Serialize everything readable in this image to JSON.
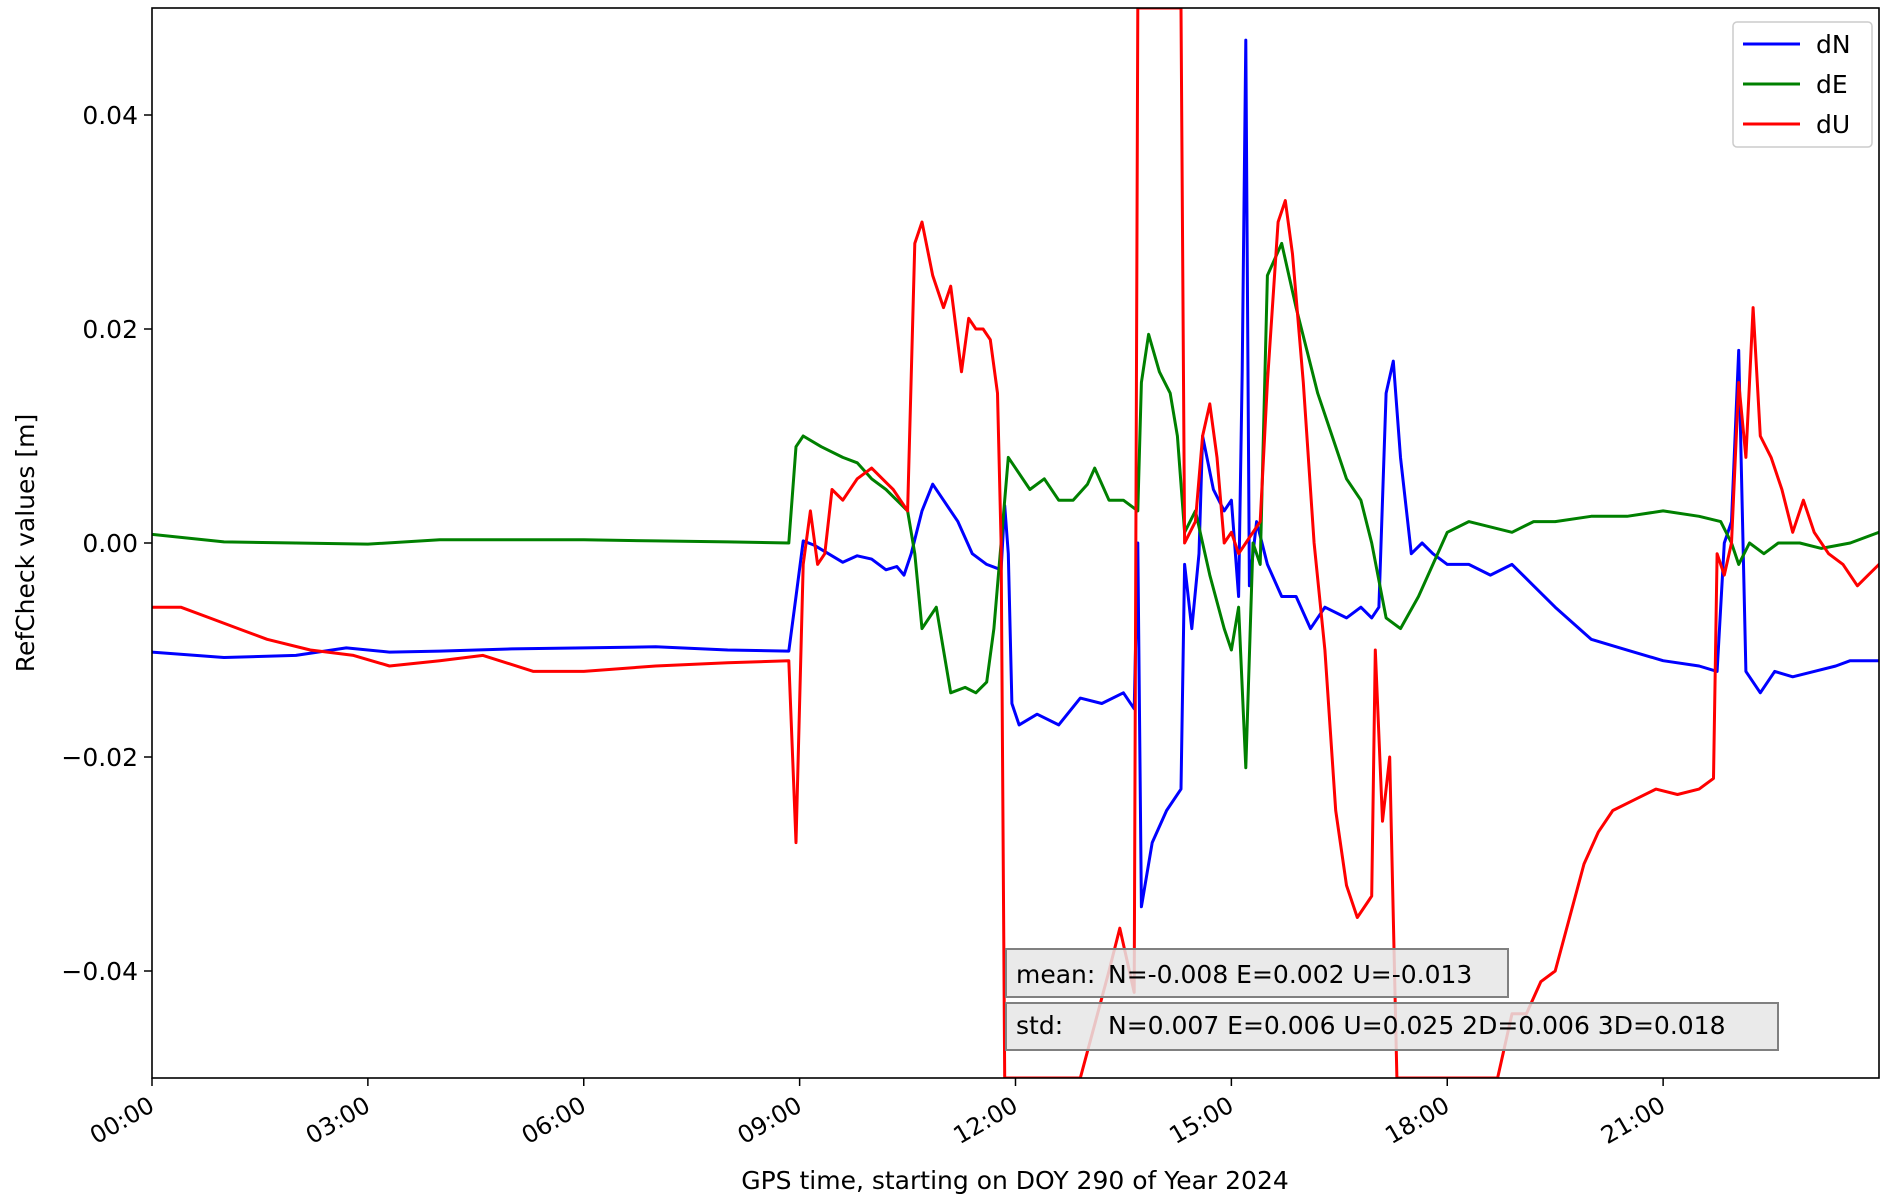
{
  "chart_data": {
    "type": "line",
    "title": "",
    "xlabel": "GPS time, starting on DOY 290 of Year 2024",
    "ylabel": "RefCheck values [m]",
    "x_unit": "hours",
    "xlim": [
      0,
      24
    ],
    "ylim": [
      -0.05,
      0.05
    ],
    "xticks": [
      0,
      3,
      6,
      9,
      12,
      15,
      18,
      21
    ],
    "xtick_labels": [
      "00:00",
      "03:00",
      "06:00",
      "09:00",
      "12:00",
      "15:00",
      "18:00",
      "21:00"
    ],
    "yticks": [
      -0.04,
      -0.02,
      0.0,
      0.02,
      0.04
    ],
    "ytick_labels": [
      "−0.04",
      "−0.02",
      "0.00",
      "0.02",
      "0.04"
    ],
    "grid": false,
    "legend_position": "top-right",
    "series": [
      {
        "name": "dN",
        "color": "#0000ff",
        "points": [
          [
            0.0,
            -0.0102
          ],
          [
            1.0,
            -0.0107
          ],
          [
            2.0,
            -0.0105
          ],
          [
            2.7,
            -0.0098
          ],
          [
            3.3,
            -0.0102
          ],
          [
            4.0,
            -0.0101
          ],
          [
            5.0,
            -0.0099
          ],
          [
            6.0,
            -0.0098
          ],
          [
            7.0,
            -0.0097
          ],
          [
            8.0,
            -0.01
          ],
          [
            8.85,
            -0.0101
          ],
          [
            8.95,
            -0.005
          ],
          [
            9.05,
            0.0002
          ],
          [
            9.2,
            -0.0002
          ],
          [
            9.4,
            -0.001
          ],
          [
            9.6,
            -0.0018
          ],
          [
            9.8,
            -0.0012
          ],
          [
            10.0,
            -0.0015
          ],
          [
            10.2,
            -0.0025
          ],
          [
            10.35,
            -0.0022
          ],
          [
            10.45,
            -0.003
          ],
          [
            10.55,
            -0.001
          ],
          [
            10.7,
            0.003
          ],
          [
            10.85,
            0.0055
          ],
          [
            11.0,
            0.004
          ],
          [
            11.2,
            0.002
          ],
          [
            11.4,
            -0.001
          ],
          [
            11.6,
            -0.002
          ],
          [
            11.8,
            -0.0025
          ],
          [
            11.85,
            0.0035
          ],
          [
            11.9,
            -0.001
          ],
          [
            11.95,
            -0.015
          ],
          [
            12.05,
            -0.017
          ],
          [
            12.3,
            -0.016
          ],
          [
            12.6,
            -0.017
          ],
          [
            12.9,
            -0.0145
          ],
          [
            13.2,
            -0.015
          ],
          [
            13.5,
            -0.014
          ],
          [
            13.65,
            -0.0155
          ],
          [
            13.7,
            0.0
          ],
          [
            13.75,
            -0.034
          ],
          [
            13.9,
            -0.028
          ],
          [
            14.1,
            -0.025
          ],
          [
            14.3,
            -0.023
          ],
          [
            14.35,
            -0.002
          ],
          [
            14.45,
            -0.008
          ],
          [
            14.55,
            -0.001
          ],
          [
            14.6,
            0.01
          ],
          [
            14.75,
            0.005
          ],
          [
            14.9,
            0.003
          ],
          [
            15.0,
            0.004
          ],
          [
            15.1,
            -0.005
          ],
          [
            15.15,
            0.016
          ],
          [
            15.2,
            0.047
          ],
          [
            15.25,
            -0.004
          ],
          [
            15.35,
            0.002
          ],
          [
            15.5,
            -0.002
          ],
          [
            15.7,
            -0.005
          ],
          [
            15.9,
            -0.005
          ],
          [
            16.1,
            -0.008
          ],
          [
            16.3,
            -0.006
          ],
          [
            16.6,
            -0.007
          ],
          [
            16.8,
            -0.006
          ],
          [
            16.95,
            -0.007
          ],
          [
            17.05,
            -0.006
          ],
          [
            17.15,
            0.014
          ],
          [
            17.25,
            0.017
          ],
          [
            17.35,
            0.008
          ],
          [
            17.5,
            -0.001
          ],
          [
            17.65,
            0.0
          ],
          [
            17.8,
            -0.001
          ],
          [
            18.0,
            -0.002
          ],
          [
            18.3,
            -0.002
          ],
          [
            18.6,
            -0.003
          ],
          [
            18.9,
            -0.002
          ],
          [
            19.2,
            -0.004
          ],
          [
            19.5,
            -0.006
          ],
          [
            20.0,
            -0.009
          ],
          [
            20.5,
            -0.01
          ],
          [
            21.0,
            -0.011
          ],
          [
            21.5,
            -0.0115
          ],
          [
            21.75,
            -0.012
          ],
          [
            21.85,
            0.0
          ],
          [
            21.95,
            0.002
          ],
          [
            22.05,
            0.018
          ],
          [
            22.15,
            -0.012
          ],
          [
            22.35,
            -0.014
          ],
          [
            22.55,
            -0.012
          ],
          [
            22.8,
            -0.0125
          ],
          [
            23.1,
            -0.012
          ],
          [
            23.4,
            -0.0115
          ],
          [
            23.6,
            -0.011
          ],
          [
            24.0,
            -0.011
          ]
        ]
      },
      {
        "name": "dE",
        "color": "#008000",
        "points": [
          [
            0.0,
            0.0008
          ],
          [
            1.0,
            0.0001
          ],
          [
            2.0,
            0.0
          ],
          [
            3.0,
            -0.0001
          ],
          [
            4.0,
            0.0003
          ],
          [
            5.0,
            0.0003
          ],
          [
            6.0,
            0.0003
          ],
          [
            7.0,
            0.0002
          ],
          [
            8.0,
            0.0001
          ],
          [
            8.85,
            0.0
          ],
          [
            8.95,
            0.009
          ],
          [
            9.05,
            0.01
          ],
          [
            9.3,
            0.009
          ],
          [
            9.6,
            0.008
          ],
          [
            9.8,
            0.0075
          ],
          [
            10.0,
            0.006
          ],
          [
            10.2,
            0.005
          ],
          [
            10.35,
            0.004
          ],
          [
            10.5,
            0.003
          ],
          [
            10.6,
            -0.001
          ],
          [
            10.7,
            -0.008
          ],
          [
            10.9,
            -0.006
          ],
          [
            11.0,
            -0.01
          ],
          [
            11.1,
            -0.014
          ],
          [
            11.3,
            -0.0135
          ],
          [
            11.45,
            -0.014
          ],
          [
            11.6,
            -0.013
          ],
          [
            11.7,
            -0.008
          ],
          [
            11.8,
            0.0
          ],
          [
            11.9,
            0.008
          ],
          [
            12.0,
            0.007
          ],
          [
            12.2,
            0.005
          ],
          [
            12.4,
            0.006
          ],
          [
            12.6,
            0.004
          ],
          [
            12.8,
            0.004
          ],
          [
            13.0,
            0.0055
          ],
          [
            13.1,
            0.007
          ],
          [
            13.3,
            0.004
          ],
          [
            13.5,
            0.004
          ],
          [
            13.7,
            0.003
          ],
          [
            13.75,
            0.015
          ],
          [
            13.85,
            0.0195
          ],
          [
            14.0,
            0.016
          ],
          [
            14.15,
            0.014
          ],
          [
            14.25,
            0.01
          ],
          [
            14.35,
            0.001
          ],
          [
            14.5,
            0.003
          ],
          [
            14.7,
            -0.003
          ],
          [
            14.9,
            -0.008
          ],
          [
            15.0,
            -0.01
          ],
          [
            15.1,
            -0.006
          ],
          [
            15.2,
            -0.021
          ],
          [
            15.3,
            0.0
          ],
          [
            15.4,
            -0.002
          ],
          [
            15.5,
            0.025
          ],
          [
            15.7,
            0.028
          ],
          [
            15.9,
            0.022
          ],
          [
            16.05,
            0.018
          ],
          [
            16.2,
            0.014
          ],
          [
            16.4,
            0.01
          ],
          [
            16.6,
            0.006
          ],
          [
            16.8,
            0.004
          ],
          [
            16.95,
            0.0
          ],
          [
            17.15,
            -0.007
          ],
          [
            17.35,
            -0.008
          ],
          [
            17.6,
            -0.005
          ],
          [
            17.8,
            -0.002
          ],
          [
            18.0,
            0.001
          ],
          [
            18.3,
            0.002
          ],
          [
            18.6,
            0.0015
          ],
          [
            18.9,
            0.001
          ],
          [
            19.2,
            0.002
          ],
          [
            19.5,
            0.002
          ],
          [
            20.0,
            0.0025
          ],
          [
            20.5,
            0.0025
          ],
          [
            21.0,
            0.003
          ],
          [
            21.5,
            0.0025
          ],
          [
            21.8,
            0.002
          ],
          [
            21.95,
            0.0
          ],
          [
            22.05,
            -0.002
          ],
          [
            22.2,
            0.0
          ],
          [
            22.4,
            -0.001
          ],
          [
            22.6,
            0.0
          ],
          [
            22.9,
            0.0
          ],
          [
            23.2,
            -0.0005
          ],
          [
            23.6,
            0.0
          ],
          [
            24.0,
            0.001
          ]
        ]
      },
      {
        "name": "dU",
        "color": "#ff0000",
        "points": [
          [
            0.0,
            -0.006
          ],
          [
            0.4,
            -0.006
          ],
          [
            0.8,
            -0.007
          ],
          [
            1.2,
            -0.008
          ],
          [
            1.6,
            -0.009
          ],
          [
            2.2,
            -0.01
          ],
          [
            2.8,
            -0.0105
          ],
          [
            3.3,
            -0.0115
          ],
          [
            4.0,
            -0.011
          ],
          [
            4.6,
            -0.0105
          ],
          [
            5.3,
            -0.012
          ],
          [
            6.0,
            -0.012
          ],
          [
            7.0,
            -0.0115
          ],
          [
            8.0,
            -0.0112
          ],
          [
            8.85,
            -0.011
          ],
          [
            8.95,
            -0.028
          ],
          [
            9.05,
            -0.002
          ],
          [
            9.15,
            0.003
          ],
          [
            9.25,
            -0.002
          ],
          [
            9.35,
            -0.001
          ],
          [
            9.45,
            0.005
          ],
          [
            9.6,
            0.004
          ],
          [
            9.8,
            0.006
          ],
          [
            10.0,
            0.007
          ],
          [
            10.15,
            0.006
          ],
          [
            10.3,
            0.005
          ],
          [
            10.5,
            0.003
          ],
          [
            10.6,
            0.028
          ],
          [
            10.7,
            0.03
          ],
          [
            10.85,
            0.025
          ],
          [
            11.0,
            0.022
          ],
          [
            11.1,
            0.024
          ],
          [
            11.25,
            0.016
          ],
          [
            11.35,
            0.021
          ],
          [
            11.45,
            0.02
          ],
          [
            11.55,
            0.02
          ],
          [
            11.65,
            0.019
          ],
          [
            11.75,
            0.014
          ],
          [
            11.8,
            0.0
          ],
          [
            11.85,
            -0.05
          ],
          [
            12.9,
            -0.05
          ],
          [
            13.1,
            -0.045
          ],
          [
            13.3,
            -0.04
          ],
          [
            13.45,
            -0.036
          ],
          [
            13.65,
            -0.042
          ],
          [
            13.7,
            0.05
          ],
          [
            14.3,
            0.05
          ],
          [
            14.35,
            0.0
          ],
          [
            14.5,
            0.002
          ],
          [
            14.6,
            0.01
          ],
          [
            14.7,
            0.013
          ],
          [
            14.8,
            0.008
          ],
          [
            14.9,
            0.0
          ],
          [
            15.0,
            0.001
          ],
          [
            15.1,
            -0.001
          ],
          [
            15.2,
            0.0
          ],
          [
            15.4,
            0.002
          ],
          [
            15.5,
            0.015
          ],
          [
            15.65,
            0.03
          ],
          [
            15.75,
            0.032
          ],
          [
            15.85,
            0.027
          ],
          [
            16.0,
            0.015
          ],
          [
            16.15,
            0.0
          ],
          [
            16.3,
            -0.01
          ],
          [
            16.45,
            -0.025
          ],
          [
            16.6,
            -0.032
          ],
          [
            16.75,
            -0.035
          ],
          [
            16.9,
            -0.0335
          ],
          [
            16.95,
            -0.033
          ],
          [
            17.0,
            -0.01
          ],
          [
            17.1,
            -0.026
          ],
          [
            17.2,
            -0.02
          ],
          [
            17.3,
            -0.05
          ],
          [
            18.7,
            -0.05
          ],
          [
            18.9,
            -0.044
          ],
          [
            19.1,
            -0.044
          ],
          [
            19.3,
            -0.041
          ],
          [
            19.5,
            -0.04
          ],
          [
            19.7,
            -0.035
          ],
          [
            19.9,
            -0.03
          ],
          [
            20.1,
            -0.027
          ],
          [
            20.3,
            -0.025
          ],
          [
            20.6,
            -0.024
          ],
          [
            20.9,
            -0.023
          ],
          [
            21.2,
            -0.0235
          ],
          [
            21.5,
            -0.023
          ],
          [
            21.7,
            -0.022
          ],
          [
            21.75,
            -0.001
          ],
          [
            21.85,
            -0.003
          ],
          [
            21.95,
            0.0
          ],
          [
            22.05,
            0.015
          ],
          [
            22.15,
            0.008
          ],
          [
            22.25,
            0.022
          ],
          [
            22.35,
            0.01
          ],
          [
            22.5,
            0.008
          ],
          [
            22.65,
            0.005
          ],
          [
            22.8,
            0.001
          ],
          [
            22.95,
            0.004
          ],
          [
            23.1,
            0.001
          ],
          [
            23.3,
            -0.001
          ],
          [
            23.5,
            -0.002
          ],
          [
            23.7,
            -0.004
          ],
          [
            23.85,
            -0.003
          ],
          [
            24.0,
            -0.002
          ]
        ]
      }
    ],
    "annotations": [
      {
        "label": "mean:",
        "text": "N=-0.008 E=0.002 U=-0.013"
      },
      {
        "label": "std:",
        "text": "N=0.007 E=0.006 U=0.025 2D=0.006 3D=0.018"
      }
    ]
  }
}
